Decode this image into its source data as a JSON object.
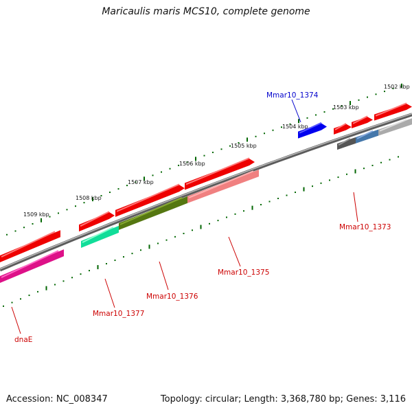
{
  "title": "Maricaulis maris MCS10, complete genome",
  "footer": {
    "accession": "Accession: NC_008347",
    "summary": "Topology: circular; Length: 3,368,780 bp; Genes: 3,116"
  },
  "scale_ticks": [
    "1509 kbp",
    "1508 kbp",
    "1507 kbp",
    "1506 kbp",
    "1505 kbp",
    "1504 kbp",
    "1503 kbp",
    "1502 kbp"
  ],
  "genes": [
    {
      "label": "Mmar10_1374",
      "color": "#0000cc"
    },
    {
      "label": "Mmar10_1373",
      "color": "#cc0000"
    },
    {
      "label": "Mmar10_1375",
      "color": "#cc0000"
    },
    {
      "label": "Mmar10_1376",
      "color": "#cc0000"
    },
    {
      "label": "Mmar10_1377",
      "color": "#cc0000"
    },
    {
      "label": "dnaE",
      "color": "#cc0000"
    }
  ],
  "colors": {
    "backbone": "#808080",
    "cds": "#ff0000",
    "ticks": "#006600",
    "gene_blue": "#0000ee"
  }
}
